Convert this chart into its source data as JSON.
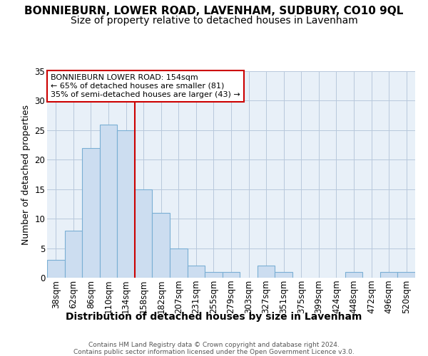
{
  "title": "BONNIEBURN, LOWER ROAD, LAVENHAM, SUDBURY, CO10 9QL",
  "subtitle": "Size of property relative to detached houses in Lavenham",
  "xlabel": "Distribution of detached houses by size in Lavenham",
  "ylabel": "Number of detached properties",
  "categories": [
    "38sqm",
    "62sqm",
    "86sqm",
    "110sqm",
    "134sqm",
    "158sqm",
    "182sqm",
    "207sqm",
    "231sqm",
    "255sqm",
    "279sqm",
    "303sqm",
    "327sqm",
    "351sqm",
    "375sqm",
    "399sqm",
    "424sqm",
    "448sqm",
    "472sqm",
    "496sqm",
    "520sqm"
  ],
  "values": [
    3,
    8,
    22,
    26,
    25,
    15,
    11,
    5,
    2,
    1,
    1,
    0,
    2,
    1,
    0,
    0,
    0,
    1,
    0,
    1,
    1
  ],
  "bar_color": "#ccddf0",
  "bar_edge_color": "#7aafd4",
  "grid_color": "#b8c8dc",
  "background_color": "#e8f0f8",
  "vline_x": 4.5,
  "vline_color": "#cc0000",
  "annotation_text": "BONNIEBURN LOWER ROAD: 154sqm\n← 65% of detached houses are smaller (81)\n35% of semi-detached houses are larger (43) →",
  "annotation_box_color": "white",
  "annotation_box_edge": "#cc0000",
  "ylim": [
    0,
    35
  ],
  "yticks": [
    0,
    5,
    10,
    15,
    20,
    25,
    30,
    35
  ],
  "footer": "Contains HM Land Registry data © Crown copyright and database right 2024.\nContains public sector information licensed under the Open Government Licence v3.0.",
  "title_fontsize": 11,
  "subtitle_fontsize": 10,
  "tick_fontsize": 8.5,
  "ylabel_fontsize": 9,
  "xlabel_fontsize": 10
}
